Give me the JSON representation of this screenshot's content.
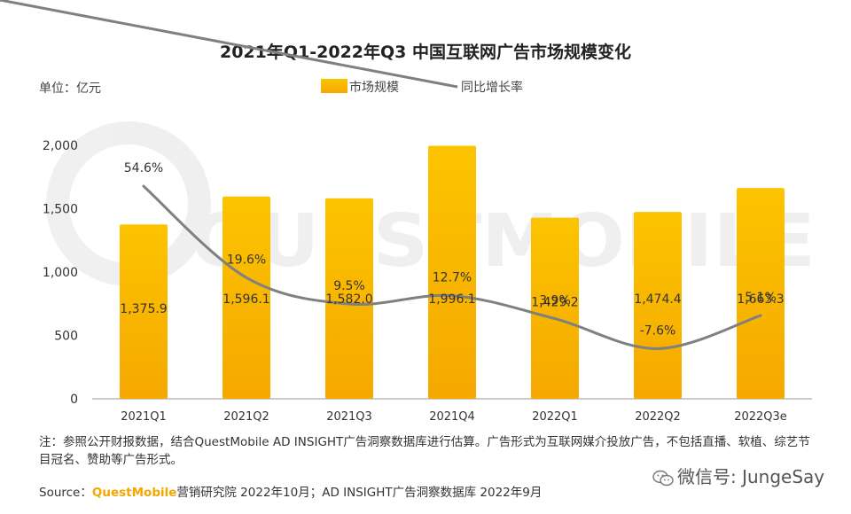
{
  "chart_data": {
    "type": "bar",
    "title": "2021年Q1-2022年Q3 中国互联网广告市场规模变化",
    "unit_label": "单位：亿元",
    "categories": [
      "2021Q1",
      "2021Q2",
      "2021Q3",
      "2021Q4",
      "2022Q1",
      "2022Q2",
      "2022Q3e"
    ],
    "series": [
      {
        "name": "市场规模",
        "type": "bar",
        "color": "#f5b400",
        "values": [
          1375.9,
          1596.1,
          1582.0,
          1996.1,
          1429.2,
          1474.4,
          1663.3
        ],
        "labels": [
          "1,375.9",
          "1,596.1",
          "1,582.0",
          "1,996.1",
          "1,429.2",
          "1,474.4",
          "1,663.3"
        ]
      },
      {
        "name": "同比增长率",
        "type": "line",
        "color": "#808080",
        "values": [
          54.6,
          19.6,
          9.5,
          12.7,
          3.9,
          -7.6,
          5.1
        ],
        "labels": [
          "54.6%",
          "19.6%",
          "9.5%",
          "12.7%",
          "3.9%",
          "-7.6%",
          "5.1%"
        ]
      }
    ],
    "y_ticks": [
      "0",
      "500",
      "1,000",
      "1,500",
      "2,000"
    ],
    "y_tick_values": [
      0,
      500,
      1000,
      1500,
      2000
    ],
    "ylim": [
      0,
      2000
    ],
    "legend_position": "top-center",
    "grid": false,
    "watermark": "QUESTMOBILE"
  },
  "footer": {
    "note": "注：参照公开财报数据，结合QuestMobile AD INSIGHT广告洞察数据库进行估算。广告形式为互联网媒介投放广告，不包括直播、软植、综艺节目冠名、赞助等广告形式。",
    "source_prefix": "Source：",
    "source_brand": "QuestMobile",
    "source_rest": "营销研究院 2022年10月；AD INSIGHT广告洞察数据库 2022年9月",
    "wechat": "微信号: JungeSay"
  }
}
